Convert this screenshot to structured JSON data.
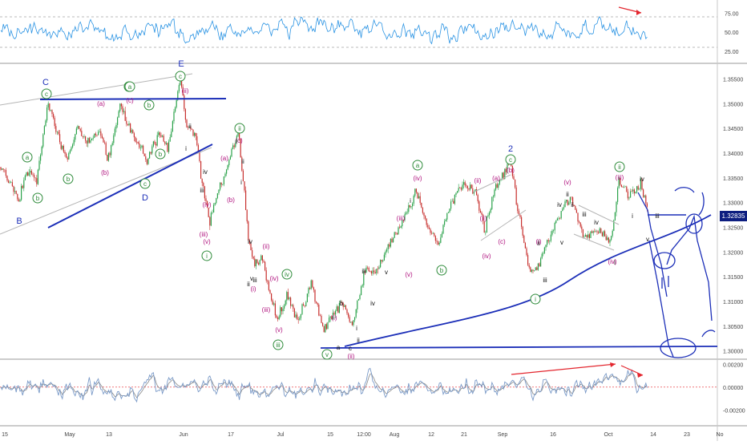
{
  "chart_data": [
    {
      "panel": "rsi",
      "type": "line",
      "y_ticks": [
        "75.00",
        "50.00",
        "25.00"
      ],
      "ylim": [
        10,
        90
      ],
      "reference_levels": [
        70,
        30
      ],
      "colors": {
        "line": "#2a93e3",
        "reference": "#bbbbbb",
        "divergence": "#e3262e"
      },
      "grid": false
    },
    {
      "panel": "price",
      "type": "candlestick",
      "ylim": [
        1.2985,
        1.358
      ],
      "y_ticks": [
        "1.35500",
        "1.35000",
        "1.34500",
        "1.34000",
        "1.33500",
        "1.33000",
        "1.32500",
        "1.32000",
        "1.31500",
        "1.31000",
        "1.30500",
        "1.30000"
      ],
      "current_price": "1.32835",
      "colors": {
        "up": "#2aa24a",
        "down": "#c7302e",
        "trendline": "#1c2fb8",
        "channel": "#b5b5b5",
        "green_label": "#2e8b3a",
        "pink_label": "#b0127e",
        "black_label": "#111111",
        "blue_label": "#1c2fb8",
        "badge": "#0d1e80"
      },
      "series": [
        {
          "name": "close",
          "x": [
            "15",
            "May",
            "13",
            "Jun",
            "17",
            "Jul",
            "15",
            "12:00",
            "Aug",
            "12",
            "21",
            "Sep",
            "16",
            "Oct",
            "14",
            "23"
          ],
          "values": [
            1.3345,
            1.349,
            1.3395,
            1.351,
            1.338,
            1.328,
            1.3035,
            1.3055,
            1.328,
            1.3245,
            1.3305,
            1.3235,
            1.3235,
            1.333,
            1.3283,
            1.3283
          ]
        }
      ],
      "annotations": {
        "blue_big": [
          "C",
          "B",
          "D",
          "E",
          "2"
        ],
        "green_circled": [
          "c",
          "b",
          "a",
          "b",
          "a",
          "b",
          "c",
          "c",
          "ii",
          "i",
          "iv",
          "iii",
          "v",
          "a",
          "b",
          "c",
          "i",
          "ii"
        ],
        "pink": [
          "(a)",
          "(b)",
          "(c)",
          "(ii)",
          "(c)",
          "(a)",
          "(b)",
          "(iv)",
          "(iii)",
          "(v)",
          "(ii)",
          "(iv)",
          "(i)",
          "(iii)",
          "(v)",
          "(i)",
          "(ii)",
          "(iii)",
          "(iv)",
          "(v)",
          "(ii)",
          "(iv)",
          "(a)",
          "(c)",
          "(b)",
          "(i)",
          "(v)",
          "(iii)",
          "(iv)",
          "(ii)"
        ],
        "black_roman": [
          "ii",
          "i",
          "iv",
          "iii",
          "ii",
          "i",
          "iv",
          "ii",
          "iii",
          "v",
          "b",
          "a",
          "c",
          "i",
          "ii",
          "iii",
          "iv",
          "v",
          "i",
          "ii",
          "iii",
          "iv",
          "v",
          "ii",
          "i",
          "iv",
          "iii",
          "v",
          "i",
          "ii",
          "iii",
          "iv"
        ]
      }
    },
    {
      "panel": "oscillator",
      "type": "line",
      "y_ticks": [
        "0.00200",
        "0.00000",
        "-0.00200"
      ],
      "ylim": [
        -0.0033,
        0.0023
      ],
      "colors": {
        "line": "#7a9ac8",
        "fast": "#888888",
        "signal": "#e3262e",
        "divergence": "#e3262e"
      }
    }
  ],
  "x_axis_labels": [
    "15",
    "May",
    "13",
    "Jun",
    "17",
    "Jul",
    "15",
    "12:00",
    "Aug",
    "12",
    "21",
    "Sep",
    "16",
    "Oct",
    "14",
    "23",
    "No"
  ]
}
